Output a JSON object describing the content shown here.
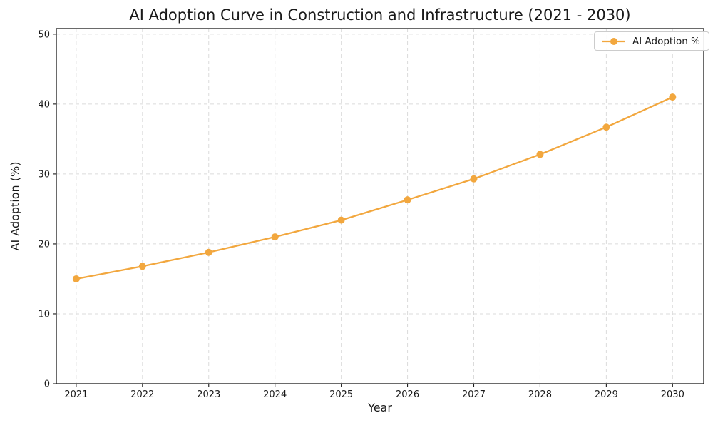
{
  "title": "AI Adoption Curve in Construction and Infrastructure (2021 - 2030)",
  "legend": {
    "label": "AI Adoption %",
    "position": "upper right"
  },
  "axes": {
    "xlabel": "Year",
    "ylabel": "AI Adoption (%)"
  },
  "colors": {
    "line": "#F2A73E",
    "marker": "#F2A73E",
    "grid": "#DBDBDB",
    "spine": "#1a1a1a",
    "text": "#1a1a1a",
    "background": "#FFFFFF",
    "legend_border": "#CCCCCC"
  },
  "chart_data": {
    "type": "line",
    "title": "AI Adoption Curve in Construction and Infrastructure (2021 - 2030)",
    "xlabel": "Year",
    "ylabel": "AI Adoption (%)",
    "x": [
      2021,
      2022,
      2023,
      2024,
      2025,
      2026,
      2027,
      2028,
      2029,
      2030
    ],
    "series": [
      {
        "name": "AI Adoption %",
        "values": [
          15.0,
          16.8,
          18.8,
          21.0,
          23.4,
          26.3,
          29.3,
          32.8,
          36.7,
          41.0
        ],
        "color": "#F2A73E",
        "marker": "circle",
        "line_style": "solid"
      }
    ],
    "xticks": [
      2021,
      2022,
      2023,
      2024,
      2025,
      2026,
      2027,
      2028,
      2029,
      2030
    ],
    "yticks": [
      0,
      10,
      20,
      30,
      40,
      50
    ],
    "xlim": [
      2020.7,
      2030.47
    ],
    "ylim": [
      0,
      50.8
    ],
    "grid": true,
    "grid_style": "dashed",
    "legend_position": "upper right"
  }
}
